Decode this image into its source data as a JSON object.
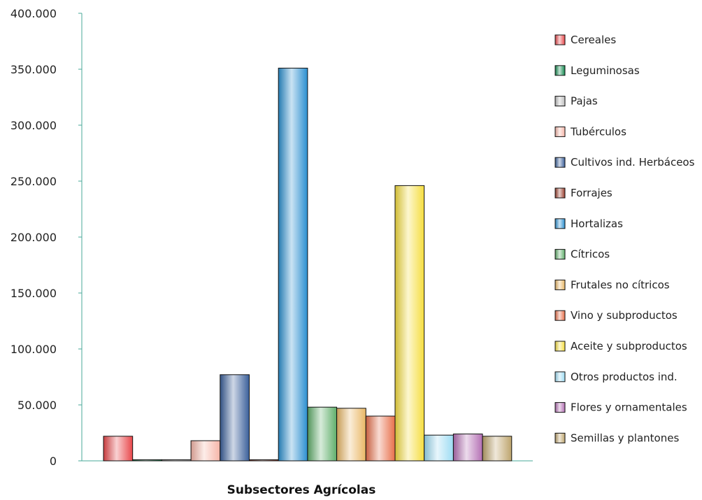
{
  "chart_data": {
    "type": "bar",
    "title": "",
    "xlabel": "Subsectores Agrícolas",
    "ylabel": "",
    "ylim": [
      0,
      400000
    ],
    "yticks": [
      0,
      50000,
      100000,
      150000,
      200000,
      250000,
      300000,
      350000,
      400000
    ],
    "ytick_labels": [
      "0",
      "50.000",
      "100.000",
      "150.000",
      "200.000",
      "250.000",
      "300.000",
      "350.000",
      "400.000"
    ],
    "grid": false,
    "legend_position": "right",
    "series": [
      {
        "name": "Cereales",
        "value": 22000,
        "color": "#e8474a"
      },
      {
        "name": "Leguminosas",
        "value": 1000,
        "color": "#128a4f"
      },
      {
        "name": "Pajas",
        "value": 1000,
        "color": "#bdbdbd"
      },
      {
        "name": "Tubérculos",
        "value": 18000,
        "color": "#f6b5a8"
      },
      {
        "name": "Cultivos ind. Herbáceos",
        "value": 77000,
        "color": "#3a5f9a"
      },
      {
        "name": "Forrajes",
        "value": 1000,
        "color": "#9a3e2e"
      },
      {
        "name": "Hortalizas",
        "value": 351000,
        "color": "#2a8fd0"
      },
      {
        "name": "Cítricos",
        "value": 48000,
        "color": "#5fae6a"
      },
      {
        "name": "Frutales no cítricos",
        "value": 47000,
        "color": "#e9b765"
      },
      {
        "name": "Vino y subproductos",
        "value": 40000,
        "color": "#e86f4a"
      },
      {
        "name": "Aceite y subproductos",
        "value": 246000,
        "color": "#f5dd3f"
      },
      {
        "name": "Otros productos ind.",
        "value": 23000,
        "color": "#9ddcf3"
      },
      {
        "name": "Flores y ornamentales",
        "value": 24000,
        "color": "#b46fb4"
      },
      {
        "name": "Semillas y plantones",
        "value": 22000,
        "color": "#bda46c"
      }
    ]
  }
}
